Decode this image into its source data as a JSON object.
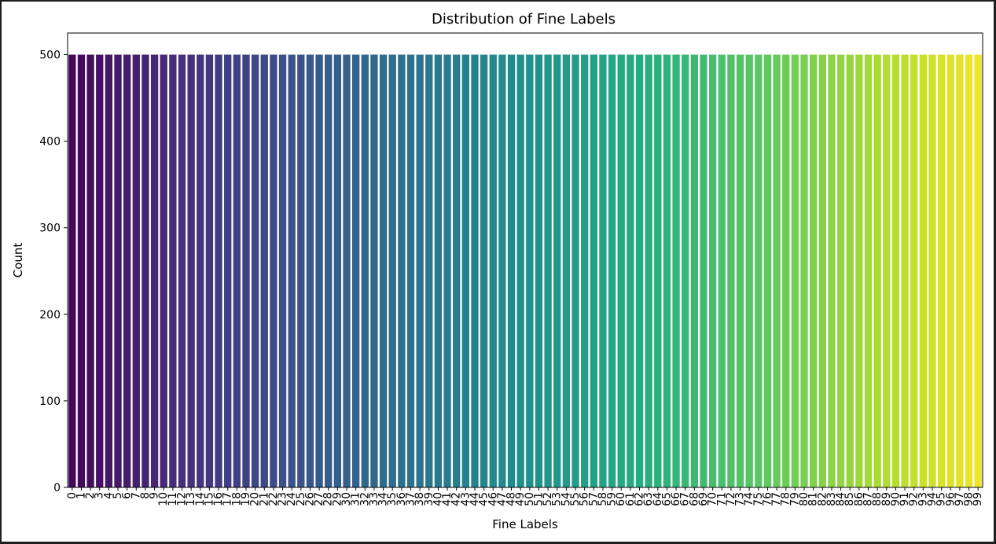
{
  "chart_data": {
    "type": "bar",
    "title": "Distribution of Fine Labels",
    "xlabel": "Fine Labels",
    "ylabel": "Count",
    "ylim": [
      0,
      525
    ],
    "yticks": [
      0,
      100,
      200,
      300,
      400,
      500
    ],
    "categories": [
      "0",
      "1",
      "2",
      "3",
      "4",
      "5",
      "6",
      "7",
      "8",
      "9",
      "10",
      "11",
      "12",
      "13",
      "14",
      "15",
      "16",
      "17",
      "18",
      "19",
      "20",
      "21",
      "22",
      "23",
      "24",
      "25",
      "26",
      "27",
      "28",
      "29",
      "30",
      "31",
      "32",
      "33",
      "34",
      "35",
      "36",
      "37",
      "38",
      "39",
      "40",
      "41",
      "42",
      "43",
      "44",
      "45",
      "46",
      "47",
      "48",
      "49",
      "50",
      "51",
      "52",
      "53",
      "54",
      "55",
      "56",
      "57",
      "58",
      "59",
      "60",
      "61",
      "62",
      "63",
      "64",
      "65",
      "66",
      "67",
      "68",
      "69",
      "70",
      "71",
      "72",
      "73",
      "74",
      "75",
      "76",
      "77",
      "78",
      "79",
      "80",
      "81",
      "82",
      "83",
      "84",
      "85",
      "86",
      "87",
      "88",
      "89",
      "90",
      "91",
      "92",
      "93",
      "94",
      "95",
      "96",
      "97",
      "98",
      "99"
    ],
    "values": [
      500,
      500,
      500,
      500,
      500,
      500,
      500,
      500,
      500,
      500,
      500,
      500,
      500,
      500,
      500,
      500,
      500,
      500,
      500,
      500,
      500,
      500,
      500,
      500,
      500,
      500,
      500,
      500,
      500,
      500,
      500,
      500,
      500,
      500,
      500,
      500,
      500,
      500,
      500,
      500,
      500,
      500,
      500,
      500,
      500,
      500,
      500,
      500,
      500,
      500,
      500,
      500,
      500,
      500,
      500,
      500,
      500,
      500,
      500,
      500,
      500,
      500,
      500,
      500,
      500,
      500,
      500,
      500,
      500,
      500,
      500,
      500,
      500,
      500,
      500,
      500,
      500,
      500,
      500,
      500,
      500,
      500,
      500,
      500,
      500,
      500,
      500,
      500,
      500,
      500,
      500,
      500,
      500,
      500,
      500,
      500,
      500,
      500,
      500,
      500
    ],
    "colormap": "viridis",
    "grid": false,
    "legend": "none"
  }
}
